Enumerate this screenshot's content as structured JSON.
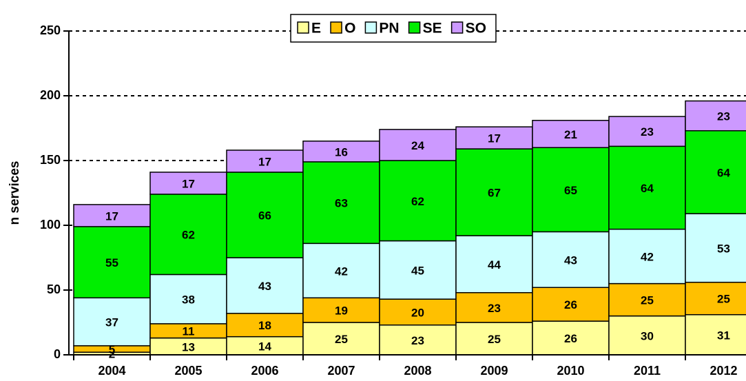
{
  "chart_data": {
    "type": "stacked-bar",
    "y_label": "n services",
    "categories": [
      "2004",
      "2005",
      "2006",
      "2007",
      "2008",
      "2009",
      "2010",
      "2011",
      "2012"
    ],
    "series": [
      {
        "name": "E",
        "color": "#ffff99",
        "values": [
          2,
          13,
          14,
          25,
          23,
          25,
          26,
          30,
          31
        ]
      },
      {
        "name": "O",
        "color": "#ffc000",
        "values": [
          5,
          11,
          18,
          19,
          20,
          23,
          26,
          25,
          25
        ]
      },
      {
        "name": "PN",
        "color": "#ccffff",
        "values": [
          37,
          38,
          43,
          42,
          45,
          44,
          43,
          42,
          53
        ]
      },
      {
        "name": "SE",
        "color": "#00ee00",
        "values": [
          55,
          62,
          66,
          63,
          62,
          67,
          65,
          64,
          64
        ]
      },
      {
        "name": "SO",
        "color": "#cc99ff",
        "values": [
          17,
          17,
          17,
          16,
          24,
          17,
          21,
          23,
          23
        ]
      }
    ],
    "ylim": [
      0,
      250
    ],
    "yticks": [
      0,
      50,
      100,
      150,
      200,
      250
    ],
    "grid": true,
    "legend": "top"
  }
}
